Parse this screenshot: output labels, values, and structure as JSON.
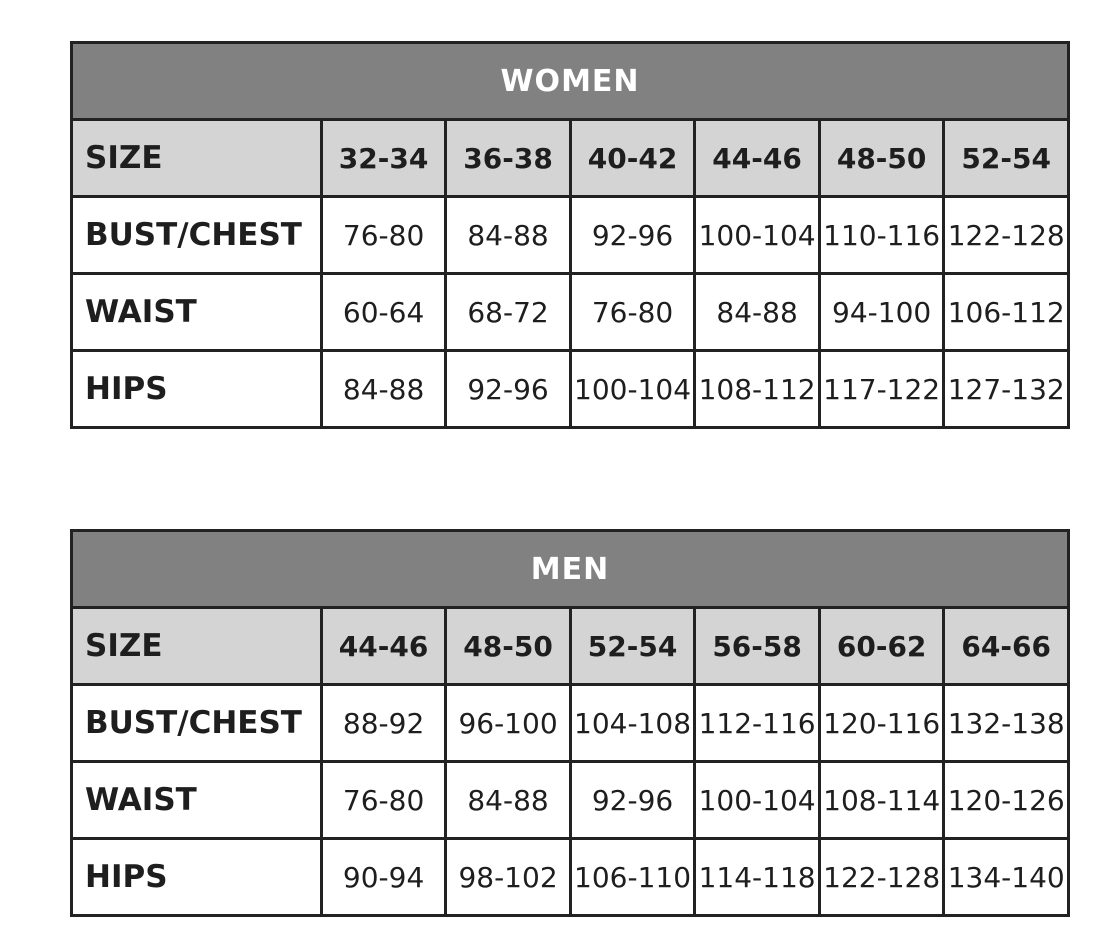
{
  "tables": [
    {
      "title": "WOMEN",
      "rows": [
        {
          "label": "SIZE",
          "values": [
            "32-34",
            "36-38",
            "40-42",
            "44-46",
            "48-50",
            "52-54"
          ]
        },
        {
          "label": "BUST/CHEST",
          "values": [
            "76-80",
            "84-88",
            "92-96",
            "100-104",
            "110-116",
            "122-128"
          ]
        },
        {
          "label": "WAIST",
          "values": [
            "60-64",
            "68-72",
            "76-80",
            "84-88",
            "94-100",
            "106-112"
          ]
        },
        {
          "label": "HIPS",
          "values": [
            "84-88",
            "92-96",
            "100-104",
            "108-112",
            "117-122",
            "127-132"
          ]
        }
      ]
    },
    {
      "title": "MEN",
      "rows": [
        {
          "label": "SIZE",
          "values": [
            "44-46",
            "48-50",
            "52-54",
            "56-58",
            "60-62",
            "64-66"
          ]
        },
        {
          "label": "BUST/CHEST",
          "values": [
            "88-92",
            "96-100",
            "104-108",
            "112-116",
            "120-116",
            "132-138"
          ]
        },
        {
          "label": "WAIST",
          "values": [
            "76-80",
            "84-88",
            "92-96",
            "100-104",
            "108-114",
            "120-126"
          ]
        },
        {
          "label": "HIPS",
          "values": [
            "90-94",
            "98-102",
            "106-110",
            "114-118",
            "122-128",
            "134-140"
          ]
        }
      ]
    }
  ],
  "colors": {
    "title_bg": "#818181",
    "size_row_bg": "#d4d4d4",
    "border": "#222222"
  }
}
